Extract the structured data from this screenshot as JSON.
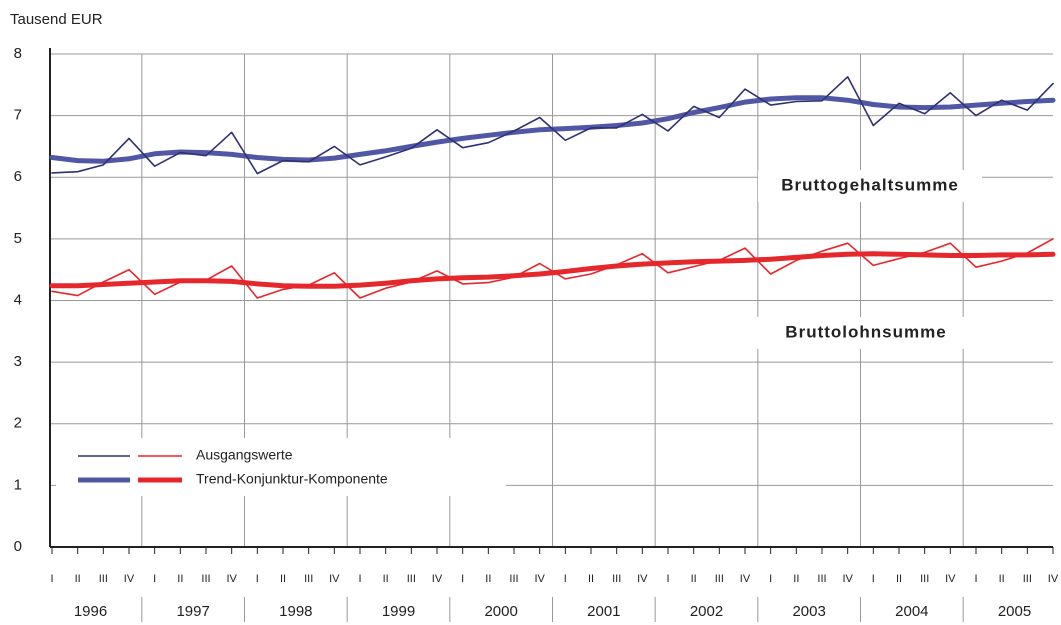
{
  "chart_data": {
    "type": "line",
    "y_unit_label": "Tausend EUR",
    "categories": [
      "I",
      "II",
      "III",
      "IV",
      "I",
      "II",
      "III",
      "IV",
      "I",
      "II",
      "III",
      "IV",
      "I",
      "II",
      "III",
      "IV",
      "I",
      "II",
      "III",
      "IV",
      "I",
      "II",
      "III",
      "IV",
      "I",
      "II",
      "III",
      "IV",
      "I",
      "II",
      "III",
      "IV",
      "I",
      "II",
      "III",
      "IV",
      "I",
      "II",
      "III",
      "IV"
    ],
    "years": [
      "1996",
      "1997",
      "1998",
      "1999",
      "2000",
      "2001",
      "2002",
      "2003",
      "2004",
      "2005"
    ],
    "legend": [
      "Ausgangswerte",
      "Trend-Konjunktur-Komponente"
    ],
    "series": [
      {
        "name": "Bruttogehaltsumme",
        "color": "#2e3273",
        "trend_color": "#5257a5",
        "values": [
          6.07,
          6.09,
          6.2,
          6.63,
          6.18,
          6.4,
          6.35,
          6.73,
          6.06,
          6.27,
          6.25,
          6.5,
          6.2,
          6.33,
          6.47,
          6.77,
          6.48,
          6.56,
          6.75,
          6.97,
          6.6,
          6.8,
          6.8,
          7.02,
          6.75,
          7.15,
          6.97,
          7.43,
          7.17,
          7.23,
          7.24,
          7.63,
          6.84,
          7.2,
          7.03,
          7.37,
          7.0,
          7.25,
          7.09,
          7.52
        ],
        "trend": [
          6.32,
          6.27,
          6.26,
          6.3,
          6.38,
          6.41,
          6.4,
          6.37,
          6.32,
          6.29,
          6.28,
          6.31,
          6.37,
          6.43,
          6.5,
          6.57,
          6.63,
          6.68,
          6.73,
          6.77,
          6.79,
          6.81,
          6.84,
          6.88,
          6.95,
          7.05,
          7.13,
          7.22,
          7.27,
          7.29,
          7.29,
          7.25,
          7.18,
          7.14,
          7.13,
          7.14,
          7.17,
          7.2,
          7.23,
          7.25
        ]
      },
      {
        "name": "Bruttolohnsumme",
        "color": "#e8262a",
        "trend_color": "#e5282c",
        "values": [
          4.15,
          4.08,
          4.3,
          4.5,
          4.1,
          4.3,
          4.33,
          4.56,
          4.04,
          4.18,
          4.25,
          4.45,
          4.04,
          4.2,
          4.3,
          4.48,
          4.27,
          4.29,
          4.38,
          4.6,
          4.35,
          4.43,
          4.58,
          4.76,
          4.45,
          4.55,
          4.65,
          4.85,
          4.43,
          4.65,
          4.8,
          4.93,
          4.57,
          4.68,
          4.78,
          4.93,
          4.54,
          4.64,
          4.77,
          5.0
        ],
        "trend": [
          4.24,
          4.24,
          4.26,
          4.28,
          4.3,
          4.32,
          4.32,
          4.31,
          4.27,
          4.24,
          4.23,
          4.23,
          4.25,
          4.28,
          4.32,
          4.35,
          4.37,
          4.38,
          4.4,
          4.43,
          4.47,
          4.52,
          4.56,
          4.59,
          4.61,
          4.63,
          4.64,
          4.65,
          4.67,
          4.7,
          4.73,
          4.75,
          4.76,
          4.75,
          4.74,
          4.73,
          4.73,
          4.74,
          4.74,
          4.75
        ]
      }
    ],
    "ylim": [
      0,
      8
    ],
    "yticks": [
      0,
      1,
      2,
      3,
      4,
      5,
      6,
      7,
      8
    ],
    "grid": true
  }
}
